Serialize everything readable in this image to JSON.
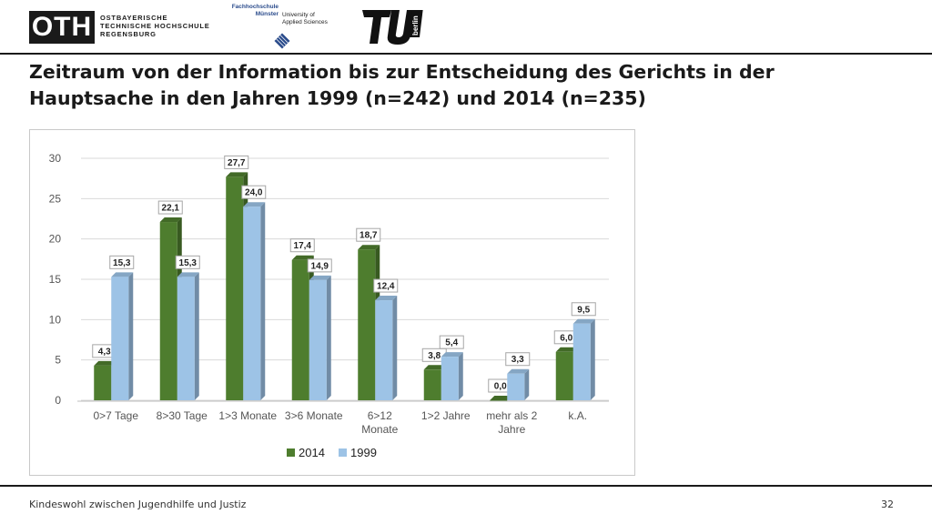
{
  "header": {
    "oth_logo_text": "OTH",
    "oth_subtitle": "OSTBAYERISCHE\nTECHNISCHE HOCHSCHULE\nREGENSBURG",
    "fh_line1": "Fachhochschule\nMünster",
    "fh_line2": "University of\nApplied Sciences",
    "tu_logo_text": "berlin"
  },
  "slide": {
    "title_line1": "Zeitraum von der Information bis zur Entscheidung des Gerichts in der",
    "title_line2": "Hauptsache in den Jahren 1999 (n=242) und 2014 (n=235)"
  },
  "footer": {
    "text": "Kindeswohl zwischen Jugendhilfe und Justiz",
    "page": "32"
  },
  "chart_data": {
    "type": "bar",
    "categories": [
      [
        "0>7 Tage"
      ],
      [
        "8>30 Tage"
      ],
      [
        "1>3 Monate"
      ],
      [
        "3>6 Monate"
      ],
      [
        "6>12",
        "Monate"
      ],
      [
        "1>2 Jahre"
      ],
      [
        "mehr als 2",
        "Jahre"
      ],
      [
        "k.A."
      ]
    ],
    "series": [
      {
        "name": "2014",
        "color": "#4e7d2e",
        "values": [
          4.3,
          22.1,
          27.7,
          17.4,
          18.7,
          3.8,
          0.0,
          6.0
        ],
        "labels": [
          "4,3",
          "22,1",
          "27,7",
          "17,4",
          "18,7",
          "3,8",
          "0,0",
          "6,0"
        ]
      },
      {
        "name": "1999",
        "color": "#9dc3e6",
        "values": [
          15.3,
          15.3,
          24.0,
          14.9,
          12.4,
          5.4,
          3.3,
          9.5
        ],
        "labels": [
          "15,3",
          "15,3",
          "24,0",
          "14,9",
          "12,4",
          "5,4",
          "3,3",
          "9,5"
        ]
      }
    ],
    "yticks": [
      "0",
      "5",
      "10",
      "15",
      "20",
      "25",
      "30"
    ],
    "ylim": [
      0,
      30
    ],
    "grid": true,
    "legend_position": "bottom"
  }
}
